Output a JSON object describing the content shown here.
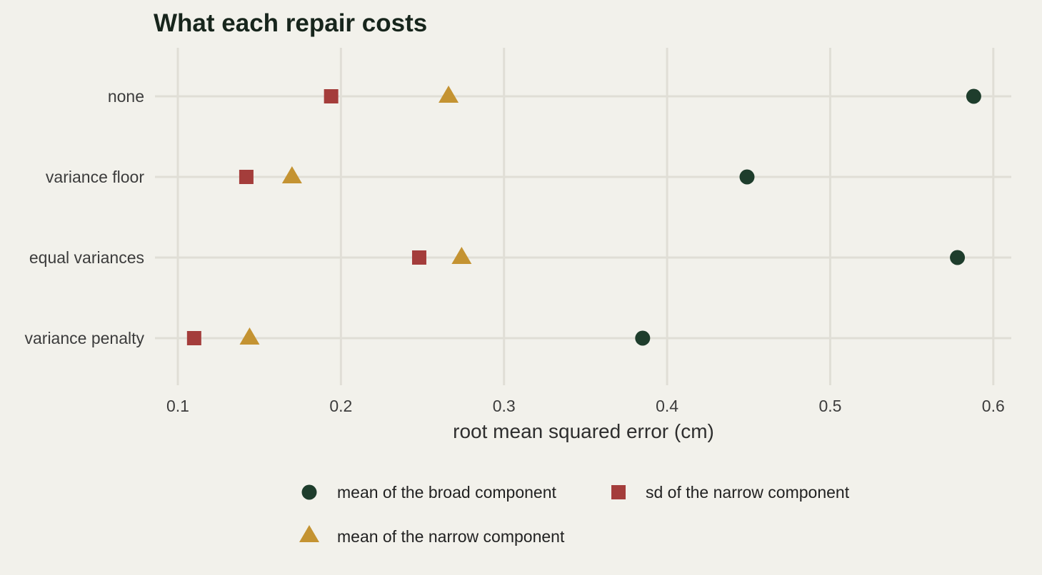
{
  "chart_data": {
    "type": "scatter",
    "title": "What each repair costs",
    "xlabel": "root mean squared error (cm)",
    "ylabel": "",
    "xlim": [
      0.085,
      0.61
    ],
    "x_ticks": [
      0.1,
      0.2,
      0.3,
      0.4,
      0.5,
      0.6
    ],
    "x_tick_labels": [
      "0.1",
      "0.2",
      "0.3",
      "0.4",
      "0.5",
      "0.6"
    ],
    "categories": [
      "none",
      "variance floor",
      "equal variances",
      "variance penalty"
    ],
    "grid": true,
    "legend_position": "bottom",
    "series": [
      {
        "name": "mean of the broad component",
        "shape": "circle",
        "color": "#1e3d2c",
        "values": [
          0.588,
          0.449,
          0.578,
          0.385
        ]
      },
      {
        "name": "sd of the narrow component",
        "shape": "square",
        "color": "#a43d3b",
        "values": [
          0.194,
          0.142,
          0.248,
          0.11
        ]
      },
      {
        "name": "mean of the narrow component",
        "shape": "triangle",
        "color": "#c49332",
        "values": [
          0.266,
          0.17,
          0.274,
          0.144
        ]
      }
    ]
  }
}
